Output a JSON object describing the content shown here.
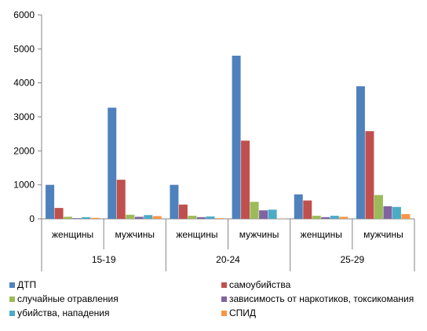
{
  "chart_data": {
    "type": "bar",
    "ylim": [
      0,
      6000
    ],
    "y_ticks": [
      "0",
      "1000",
      "2000",
      "3000",
      "4000",
      "5000",
      "6000"
    ],
    "y_tick_values": [
      0,
      1000,
      2000,
      3000,
      4000,
      5000,
      6000
    ],
    "age_groups": [
      "15-19",
      "20-24",
      "25-29"
    ],
    "genders": [
      "женщины",
      "мужчины"
    ],
    "grid": false,
    "legend_position": "bottom",
    "series": [
      {
        "name": "ДТП",
        "color": "#4F81BD",
        "values": [
          1000,
          3270,
          1000,
          4800,
          720,
          3900
        ]
      },
      {
        "name": "самоубийства",
        "color": "#C0504D",
        "values": [
          320,
          1150,
          420,
          2300,
          540,
          2580
        ]
      },
      {
        "name": "случайные отравления",
        "color": "#9BBB59",
        "values": [
          60,
          120,
          90,
          500,
          90,
          700
        ]
      },
      {
        "name": "зависимость от наркотиков, токсикомания",
        "color": "#8064A2",
        "values": [
          20,
          60,
          50,
          250,
          50,
          370
        ]
      },
      {
        "name": "убийства, нападения",
        "color": "#4BACC6",
        "values": [
          50,
          110,
          70,
          270,
          90,
          350
        ]
      },
      {
        "name": "СПИД",
        "color": "#F79646",
        "values": [
          30,
          80,
          20,
          10,
          60,
          140
        ]
      }
    ]
  }
}
